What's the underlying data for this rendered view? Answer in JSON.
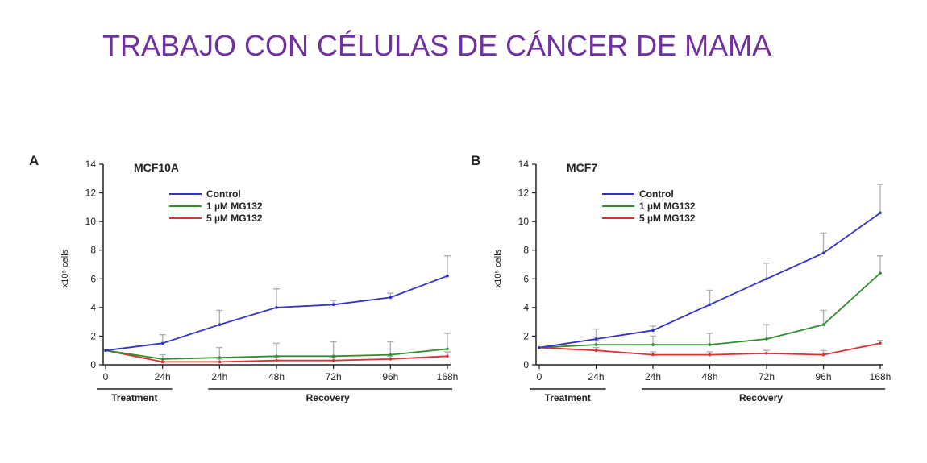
{
  "slide": {
    "title": "TRABAJO CON CÉLULAS DE CÁNCER DE MAMA"
  },
  "colors": {
    "title": "#7030a0",
    "control": "#3333cc",
    "mg1": "#2f8f2f",
    "mg5": "#e03030",
    "errorbar": "#b0b0b8",
    "axis": "#222222"
  },
  "chart_data": [
    {
      "type": "line",
      "panel_label": "A",
      "title": "MCF10A",
      "ylabel": "x10⁵ cells",
      "categories": [
        "0",
        "24h",
        "24h",
        "48h",
        "72h",
        "96h",
        "168h"
      ],
      "phase_labels": [
        "Treatment",
        "Recovery"
      ],
      "ylim": [
        0,
        14
      ],
      "yticks": [
        "0",
        "2",
        "4",
        "6",
        "8",
        "10",
        "12",
        "14"
      ],
      "legend_position": "top-left",
      "series": [
        {
          "name": "Control",
          "color": "#3333cc",
          "values": [
            1.0,
            1.5,
            2.8,
            4.0,
            4.2,
            4.7,
            6.2
          ],
          "errors": [
            0,
            0.6,
            1.0,
            1.3,
            0.3,
            0.3,
            1.4
          ]
        },
        {
          "name": "1 µM MG132",
          "color": "#2f8f2f",
          "values": [
            1.0,
            0.4,
            0.5,
            0.6,
            0.6,
            0.7,
            1.1
          ],
          "errors": [
            0,
            0.3,
            0.7,
            0.9,
            1.0,
            0.9,
            1.1
          ]
        },
        {
          "name": "5 µM MG132",
          "color": "#e03030",
          "values": [
            1.0,
            0.2,
            0.2,
            0.3,
            0.3,
            0.4,
            0.6
          ],
          "errors": [
            0,
            0.2,
            0.2,
            0.2,
            0.2,
            0.2,
            0.3
          ]
        }
      ]
    },
    {
      "type": "line",
      "panel_label": "B",
      "title": "MCF7",
      "ylabel": "x10⁵ cells",
      "categories": [
        "0",
        "24h",
        "24h",
        "48h",
        "72h",
        "96h",
        "168h"
      ],
      "phase_labels": [
        "Treatment",
        "Recovery"
      ],
      "ylim": [
        0,
        14
      ],
      "yticks": [
        "0",
        "2",
        "4",
        "6",
        "8",
        "10",
        "12",
        "14"
      ],
      "legend_position": "top-left",
      "series": [
        {
          "name": "Control",
          "color": "#3333cc",
          "values": [
            1.2,
            1.8,
            2.4,
            4.2,
            6.0,
            7.8,
            10.6
          ],
          "errors": [
            0,
            0.7,
            0.3,
            1.0,
            1.1,
            1.4,
            2.0
          ]
        },
        {
          "name": "1 µM MG132",
          "color": "#2f8f2f",
          "values": [
            1.2,
            1.4,
            1.4,
            1.4,
            1.8,
            2.8,
            6.4
          ],
          "errors": [
            0,
            0.3,
            0.6,
            0.8,
            1.0,
            1.0,
            1.2
          ]
        },
        {
          "name": "5 µM MG132",
          "color": "#e03030",
          "values": [
            1.2,
            1.0,
            0.7,
            0.7,
            0.8,
            0.7,
            1.5
          ],
          "errors": [
            0,
            0.2,
            0.2,
            0.2,
            0.2,
            0.3,
            0.2
          ]
        }
      ]
    }
  ]
}
